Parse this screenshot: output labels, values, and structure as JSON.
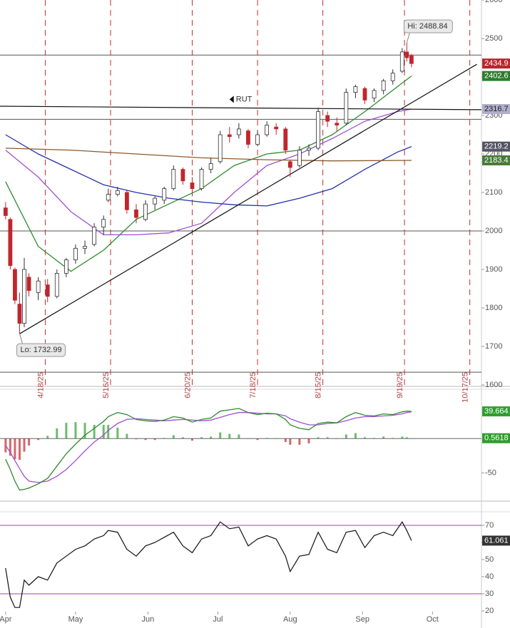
{
  "chart_data": [
    {
      "type": "candlestick",
      "xlim": [
        88.6,
        295
      ],
      "ylim": [
        1600,
        2600
      ],
      "yticks": [
        1600,
        1700,
        1800,
        1900,
        2000,
        2100,
        2200,
        2300,
        2400,
        2500,
        2600
      ],
      "x": [
        91,
        93,
        95,
        97,
        99,
        101,
        105,
        109,
        113,
        117,
        121,
        125,
        129,
        133,
        135,
        139,
        143,
        147,
        151,
        155,
        159,
        163,
        167,
        171,
        175,
        179,
        183,
        187,
        191,
        195,
        199,
        203,
        207,
        211,
        213,
        217,
        221,
        225,
        229,
        233,
        237,
        241,
        245,
        249,
        253,
        257,
        261,
        263,
        265
      ],
      "open": [
        2060,
        2030,
        1900,
        1810,
        1760,
        1880,
        1840,
        1860,
        1830,
        1890,
        1925,
        1955,
        1965,
        2010,
        2080,
        2095,
        2100,
        2055,
        2030,
        2070,
        2080,
        2110,
        2160,
        2125,
        2110,
        2160,
        2180,
        2250,
        2250,
        2260,
        2225,
        2250,
        2270,
        2265,
        2180,
        2170,
        2210,
        2215,
        2300,
        2280,
        2280,
        2360,
        2370,
        2345,
        2365,
        2390,
        2415,
        2465,
        2455
      ],
      "high": [
        2075,
        2035,
        1905,
        1840,
        1930,
        1890,
        1880,
        1875,
        1900,
        1930,
        1965,
        1975,
        2020,
        2040,
        2110,
        2115,
        2105,
        2070,
        2080,
        2090,
        2115,
        2170,
        2165,
        2140,
        2165,
        2190,
        2260,
        2270,
        2280,
        2265,
        2260,
        2285,
        2280,
        2270,
        2185,
        2220,
        2225,
        2320,
        2310,
        2295,
        2370,
        2380,
        2375,
        2370,
        2395,
        2420,
        2475,
        2488.84,
        2460
      ],
      "low": [
        2030,
        1900,
        1810,
        1732.99,
        1750,
        1830,
        1820,
        1815,
        1825,
        1880,
        1915,
        1940,
        1960,
        1990,
        2075,
        2090,
        2045,
        2020,
        2025,
        2055,
        2070,
        2105,
        2120,
        2090,
        2105,
        2150,
        2175,
        2230,
        2240,
        2215,
        2220,
        2245,
        2250,
        2200,
        2140,
        2165,
        2195,
        2210,
        2270,
        2260,
        2275,
        2345,
        2330,
        2335,
        2355,
        2380,
        2410,
        2440,
        2425
      ],
      "close": [
        2040,
        1910,
        1820,
        1760,
        1900,
        1845,
        1870,
        1830,
        1890,
        1925,
        1955,
        1960,
        2010,
        2030,
        2095,
        2105,
        2055,
        2035,
        2070,
        2085,
        2110,
        2160,
        2130,
        2110,
        2160,
        2175,
        2250,
        2245,
        2265,
        2225,
        2250,
        2275,
        2265,
        2210,
        2165,
        2210,
        2215,
        2310,
        2285,
        2275,
        2360,
        2375,
        2340,
        2365,
        2390,
        2410,
        2465,
        2450,
        2434.9
      ],
      "up_color": "#ffffff",
      "up_edge": "#2e2e2e",
      "down_color": "#c0262d",
      "tag_color": "#b8262d",
      "moving_averages": [
        {
          "color": "#2e8b2e",
          "x": [
            91,
            105,
            119,
            133,
            147,
            161,
            175,
            189,
            203,
            217,
            231,
            245,
            259,
            265
          ],
          "values": [
            2128,
            1960,
            1895,
            1950,
            2030,
            2070,
            2110,
            2170,
            2200,
            2210,
            2250,
            2310,
            2375,
            2402.6
          ]
        },
        {
          "color": "#a050d0",
          "x": [
            91,
            105,
            119,
            133,
            147,
            161,
            175,
            189,
            203,
            217,
            231,
            245,
            259,
            265
          ],
          "values": [
            2210,
            2140,
            2050,
            1990,
            1990,
            1995,
            2020,
            2100,
            2170,
            2200,
            2240,
            2285,
            2310,
            2316.7
          ]
        },
        {
          "color": "#2233aa",
          "x": [
            91,
            105,
            119,
            133,
            147,
            161,
            175,
            189,
            203,
            217,
            231,
            245,
            259,
            265
          ],
          "values": [
            2250,
            2200,
            2160,
            2120,
            2100,
            2085,
            2075,
            2068,
            2065,
            2085,
            2110,
            2160,
            2205,
            2219.2
          ]
        },
        {
          "color": "#8b5a2b",
          "x": [
            91,
            119,
            147,
            175,
            203,
            231,
            265
          ],
          "values": [
            2215,
            2210,
            2200,
            2190,
            2185,
            2182,
            2183.4
          ]
        }
      ],
      "tag_colors": [
        "#2e7d2e",
        "#b0aec8",
        "#555566",
        "#4a7a3a"
      ],
      "hlines": [
        2457,
        2290,
        2000,
        1633
      ],
      "trendlines": [
        {
          "x": [
            97,
            293
          ],
          "values": [
            1732.99,
            2433
          ]
        },
        {
          "name": "RUT",
          "x": [
            88.6,
            295
          ],
          "values": [
            2324,
            2315
          ]
        }
      ],
      "markers": [
        {
          "x": 108,
          "label": "4/18/25"
        },
        {
          "x": 136,
          "label": "5/16/25"
        },
        {
          "x": 171,
          "label": "6/20/25"
        },
        {
          "x": 199,
          "label": "7/18/25"
        },
        {
          "x": 227,
          "label": "8/15/25"
        },
        {
          "x": 262,
          "label": "9/19/25"
        },
        {
          "x": 290,
          "label": "10/17/25"
        }
      ],
      "annotations": [
        {
          "text": "Hi: 2488.84",
          "x": 263,
          "y": 2488.84,
          "position": "above"
        },
        {
          "text": "Lo: 1732.99",
          "x": 97,
          "y": 1732.99,
          "position": "below"
        }
      ]
    },
    {
      "type": "macd",
      "xlim": [
        88.6,
        295
      ],
      "ylim": [
        -88,
        72
      ],
      "yticks": [
        -50
      ],
      "x": [
        91,
        93,
        95,
        97,
        99,
        101,
        105,
        109,
        113,
        117,
        121,
        125,
        129,
        133,
        135,
        139,
        143,
        147,
        151,
        155,
        159,
        163,
        167,
        171,
        175,
        179,
        183,
        187,
        191,
        195,
        199,
        203,
        207,
        211,
        213,
        217,
        221,
        225,
        229,
        233,
        237,
        241,
        245,
        249,
        253,
        257,
        261,
        263,
        265
      ],
      "macd": [
        -30,
        -45,
        -62,
        -75,
        -74,
        -72,
        -66,
        -58,
        -40,
        -22,
        -8,
        5,
        15,
        25,
        32,
        38,
        35,
        28,
        26,
        25,
        27,
        32,
        30,
        24,
        28,
        30,
        40,
        42,
        44,
        38,
        35,
        37,
        36,
        28,
        20,
        15,
        13,
        22,
        24,
        23,
        32,
        38,
        34,
        33,
        36,
        35,
        39,
        40,
        39.664
      ],
      "signal": [
        -10,
        -20,
        -32,
        -44,
        -55,
        -62,
        -64,
        -62,
        -55,
        -45,
        -32,
        -18,
        -5,
        5,
        12,
        22,
        28,
        29,
        28,
        27,
        26,
        27,
        28,
        27,
        26,
        27,
        31,
        35,
        38,
        38,
        37,
        36,
        36,
        33,
        29,
        24,
        20,
        20,
        22,
        23,
        26,
        30,
        32,
        32,
        33,
        34,
        36,
        38,
        39.1
      ],
      "hist": [
        -20,
        -25,
        -30,
        -31,
        -19,
        -10,
        -2,
        4,
        15,
        23,
        24,
        23,
        20,
        20,
        20,
        16,
        7,
        -1,
        -2,
        -2,
        1,
        5,
        2,
        -3,
        2,
        3,
        9,
        7,
        6,
        0,
        -2,
        1,
        0,
        -5,
        -9,
        -9,
        -7,
        2,
        2,
        0,
        6,
        8,
        2,
        1,
        3,
        1,
        3,
        2,
        0.5618
      ],
      "macd_color": "#2e8b2e",
      "signal_color": "#a050d0",
      "up_color": "#2e9e2e",
      "down_color": "#c0262d",
      "hlines": [
        0
      ]
    },
    {
      "type": "rsi",
      "xlim": [
        88.6,
        295
      ],
      "ylim": [
        20,
        77.9
      ],
      "yticks": [
        20,
        30,
        40,
        50,
        60,
        70
      ],
      "xticks": [
        {
          "value": 91,
          "label": "Apr"
        },
        {
          "value": 121,
          "label": "May"
        },
        {
          "value": 152,
          "label": "Jun"
        },
        {
          "value": 182,
          "label": "Jul"
        },
        {
          "value": 213,
          "label": "Aug"
        },
        {
          "value": 244,
          "label": "Sep"
        },
        {
          "value": 274,
          "label": "Oct"
        }
      ],
      "x": [
        91,
        93,
        95,
        97,
        99,
        101,
        105,
        109,
        113,
        117,
        121,
        125,
        129,
        133,
        135,
        139,
        143,
        147,
        151,
        155,
        159,
        163,
        167,
        171,
        175,
        179,
        183,
        187,
        191,
        195,
        199,
        203,
        207,
        211,
        213,
        217,
        221,
        225,
        229,
        233,
        237,
        241,
        245,
        249,
        253,
        257,
        261,
        263,
        265
      ],
      "values": [
        45,
        28,
        22,
        22,
        38,
        35,
        40,
        38,
        48,
        52,
        56,
        58,
        62,
        64,
        67,
        66,
        56,
        52,
        58,
        60,
        63,
        66,
        58,
        54,
        62,
        64,
        72,
        68,
        69,
        58,
        62,
        64,
        62,
        52,
        43,
        52,
        53,
        66,
        56,
        54,
        66,
        67,
        57,
        64,
        66,
        64,
        72,
        67,
        61.061
      ],
      "color": "#111111",
      "ref_color": "#a040a0",
      "hlines": [
        70,
        30
      ]
    }
  ]
}
